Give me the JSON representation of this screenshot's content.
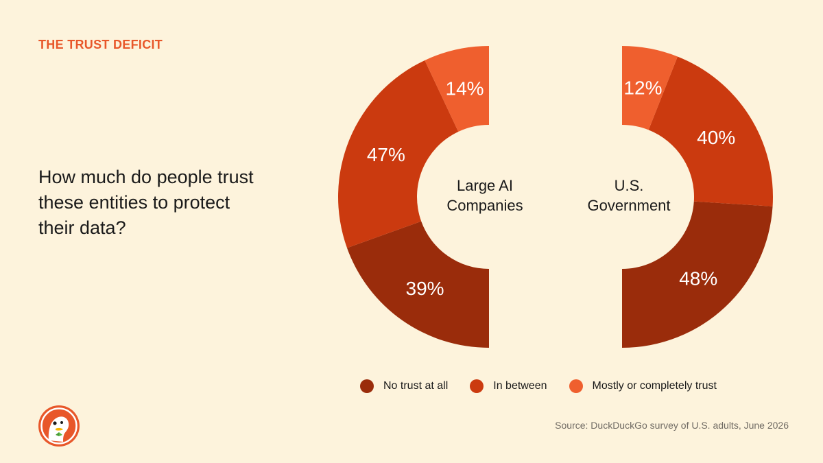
{
  "eyebrow": "THE TRUST DEFICIT",
  "question": "How much do people trust these entities to protect their data?",
  "source": "Source: DuckDuckGo survey of U.S. adults, June 2026",
  "logo_icon": "duckduckgo-logo",
  "colors": {
    "background": "#fdf3dc",
    "eyebrow": "#e8572a"
  },
  "chart_data": [
    {
      "type": "pie",
      "style": "half-donut-left",
      "center_label_lines": [
        "Large AI",
        "Companies"
      ],
      "slices": [
        {
          "category": "No trust at all",
          "value": 39,
          "label": "39%",
          "color": "#9a2c0b"
        },
        {
          "category": "In between",
          "value": 47,
          "label": "47%",
          "color": "#cb3a0f"
        },
        {
          "category": "Mostly or completely trust",
          "value": 14,
          "label": "14%",
          "color": "#ef5f2e"
        }
      ]
    },
    {
      "type": "pie",
      "style": "half-donut-right",
      "center_label_lines": [
        "U.S.",
        "Government"
      ],
      "slices": [
        {
          "category": "No trust at all",
          "value": 48,
          "label": "48%",
          "color": "#9a2c0b"
        },
        {
          "category": "In between",
          "value": 40,
          "label": "40%",
          "color": "#cb3a0f"
        },
        {
          "category": "Mostly or completely trust",
          "value": 12,
          "label": "12%",
          "color": "#ef5f2e"
        }
      ]
    }
  ],
  "legend": [
    {
      "label": "No trust at all",
      "color": "#9a2c0b"
    },
    {
      "label": "In between",
      "color": "#cb3a0f"
    },
    {
      "label": "Mostly or completely trust",
      "color": "#ef5f2e"
    }
  ]
}
